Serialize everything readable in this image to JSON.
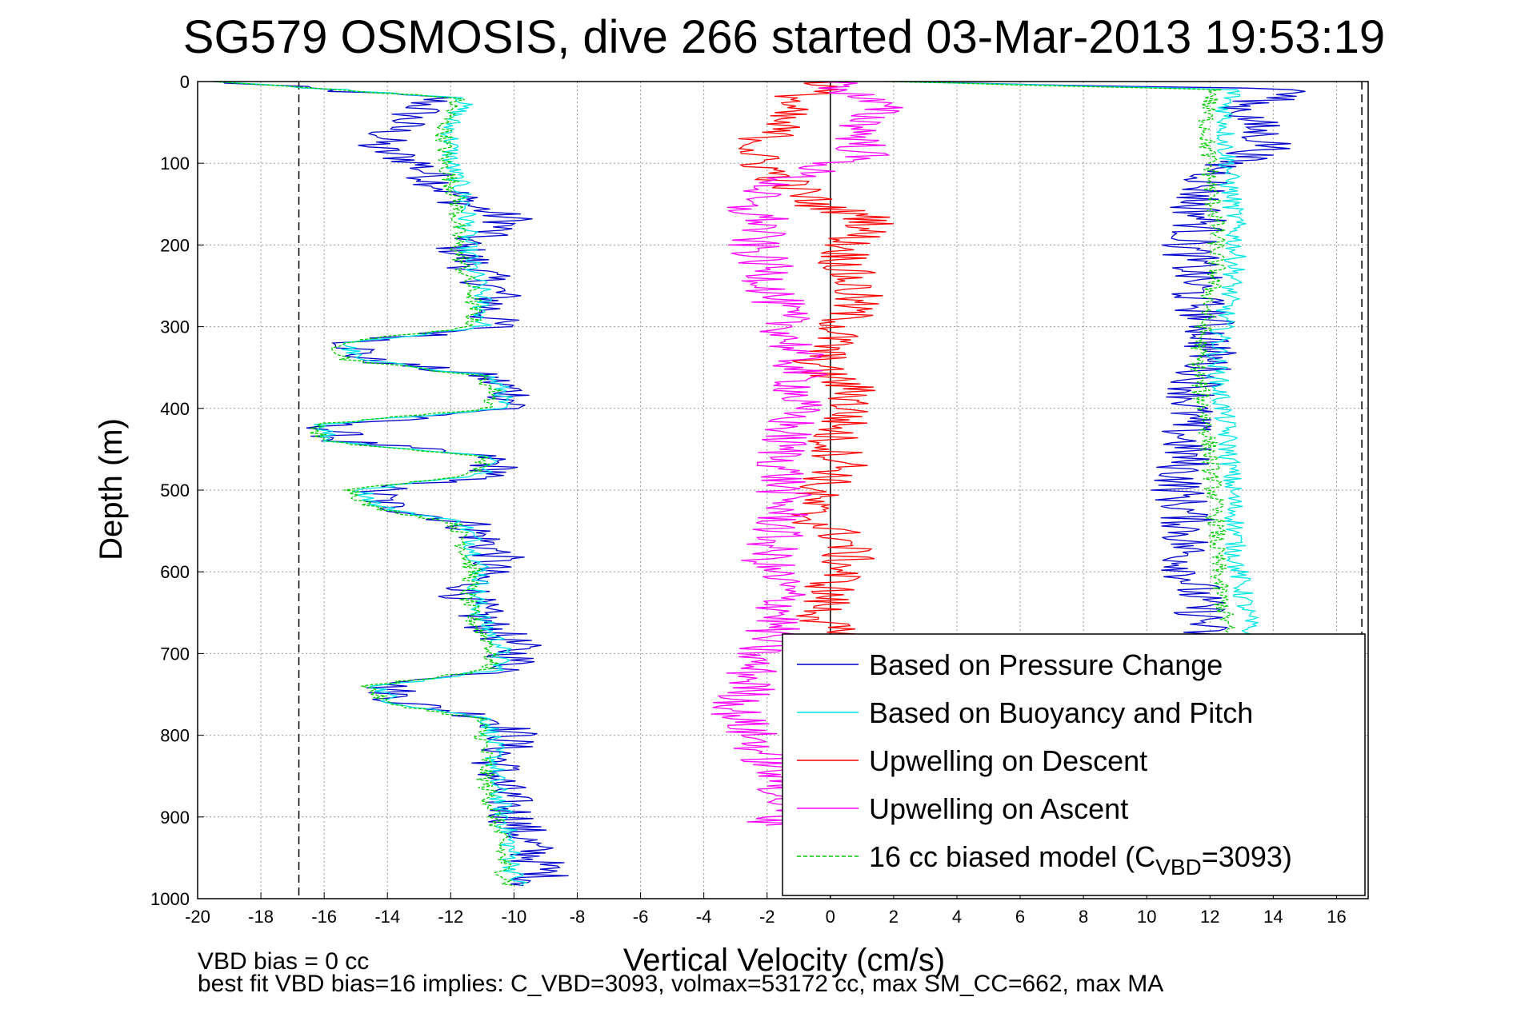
{
  "chart_data": {
    "type": "line",
    "title": "SG579 OSMOSIS, dive 266 started 03-Mar-2013 19:53:19",
    "xlabel": "Vertical Velocity (cm/s)",
    "ylabel": "Depth (m)",
    "xlim": [
      -20,
      17
    ],
    "ylim": [
      0,
      1000
    ],
    "y_reversed": true,
    "grid": true,
    "xticks": [
      "-20",
      "-18",
      "-16",
      "-14",
      "-12",
      "-10",
      "-8",
      "-6",
      "-4",
      "-2",
      "0",
      "2",
      "4",
      "6",
      "8",
      "10",
      "12",
      "14",
      "16"
    ],
    "yticks": [
      "0",
      "100",
      "200",
      "300",
      "400",
      "500",
      "600",
      "700",
      "800",
      "900",
      "1000"
    ],
    "reference_lines": {
      "vertical_dashed_x": [
        -16.8,
        16.8
      ],
      "vertical_solid_x": [
        0
      ]
    },
    "legend_position": "bottom-right",
    "legend": [
      {
        "label": "Based on Pressure Change",
        "color": "#0000cc",
        "style": "solid"
      },
      {
        "label": "Based on Buoyancy and Pitch",
        "color": "#00e6e6",
        "style": "solid"
      },
      {
        "label": "Upwelling on Descent",
        "color": "#ff0000",
        "style": "solid"
      },
      {
        "label": "Upwelling on Ascent",
        "color": "#ff00ff",
        "style": "solid"
      },
      {
        "label_prefix": "16 cc biased model (C",
        "label_subscript": "VBD",
        "label_suffix": "=3093)",
        "color": "#00cc00",
        "style": "dashed"
      }
    ],
    "series": [
      {
        "name": "Based on Pressure Change (descent)",
        "color": "#0000cc",
        "depth": [
          0,
          20,
          50,
          80,
          100,
          120,
          150,
          170,
          200,
          230,
          260,
          280,
          300,
          320,
          340,
          360,
          380,
          400,
          420,
          440,
          460,
          480,
          500,
          520,
          540,
          560,
          580,
          600,
          630,
          660,
          690,
          720,
          740,
          760,
          780,
          800,
          830,
          860,
          900,
          940,
          970,
          985
        ],
        "velocity": [
          -19.5,
          -12.5,
          -13.5,
          -14.5,
          -13.0,
          -12.5,
          -11.5,
          -10.0,
          -11.8,
          -11.2,
          -10.5,
          -10.8,
          -10.6,
          -15.0,
          -14.8,
          -11.0,
          -10.0,
          -10.0,
          -15.8,
          -15.5,
          -10.8,
          -10.5,
          -14.5,
          -14.0,
          -11.5,
          -11.0,
          -10.5,
          -11.0,
          -11.5,
          -11.0,
          -10.0,
          -10.0,
          -14.0,
          -13.5,
          -10.5,
          -10.0,
          -10.5,
          -10.5,
          -10.0,
          -9.5,
          -9.0,
          -9.5
        ]
      },
      {
        "name": "Based on Buoyancy and Pitch (descent)",
        "color": "#00e6e6",
        "depth": [
          0,
          20,
          50,
          80,
          100,
          120,
          150,
          170,
          200,
          230,
          260,
          280,
          300,
          320,
          340,
          360,
          380,
          400,
          420,
          440,
          460,
          480,
          500,
          520,
          540,
          560,
          580,
          600,
          630,
          660,
          690,
          720,
          740,
          760,
          780,
          800,
          830,
          860,
          900,
          940,
          970,
          985
        ],
        "velocity": [
          -19.5,
          -11.5,
          -12.0,
          -12.0,
          -12.0,
          -11.8,
          -11.5,
          -11.5,
          -11.5,
          -11.3,
          -11.0,
          -11.0,
          -11.0,
          -15.3,
          -15.0,
          -10.8,
          -10.3,
          -10.5,
          -16.0,
          -15.8,
          -10.5,
          -11.0,
          -14.8,
          -14.3,
          -11.6,
          -11.3,
          -11.2,
          -11.0,
          -11.2,
          -11.0,
          -10.4,
          -10.5,
          -14.3,
          -13.8,
          -10.8,
          -10.7,
          -10.6,
          -10.6,
          -10.3,
          -10.1,
          -10.0,
          -9.8
        ]
      },
      {
        "name": "Biased model (descent)",
        "color": "#00cc00",
        "depth": [
          0,
          20,
          50,
          80,
          100,
          120,
          150,
          170,
          200,
          230,
          260,
          280,
          300,
          320,
          340,
          360,
          380,
          400,
          420,
          440,
          460,
          480,
          500,
          520,
          540,
          560,
          580,
          600,
          630,
          660,
          690,
          720,
          740,
          760,
          780,
          800,
          830,
          860,
          900,
          940,
          970,
          985
        ],
        "velocity": [
          -19.5,
          -11.8,
          -12.2,
          -12.2,
          -12.2,
          -12.0,
          -11.8,
          -11.8,
          -11.8,
          -11.6,
          -11.3,
          -11.3,
          -11.3,
          -15.6,
          -15.3,
          -11.1,
          -10.6,
          -10.8,
          -16.3,
          -16.1,
          -10.8,
          -11.3,
          -15.1,
          -14.6,
          -11.9,
          -11.6,
          -11.5,
          -11.3,
          -11.5,
          -11.3,
          -10.7,
          -10.8,
          -14.6,
          -14.1,
          -11.1,
          -11.0,
          -10.9,
          -10.9,
          -10.6,
          -10.4,
          -10.3,
          -10.1
        ]
      },
      {
        "name": "Based on Pressure Change (ascent)",
        "color": "#0000cc",
        "depth": [
          985,
          940,
          900,
          860,
          820,
          780,
          740,
          700,
          660,
          620,
          580,
          540,
          500,
          460,
          420,
          380,
          340,
          300,
          260,
          230,
          200,
          170,
          150,
          120,
          100,
          80,
          60,
          30,
          10,
          0
        ],
        "velocity": [
          15.5,
          13.0,
          12.5,
          12.0,
          11.5,
          11.5,
          11.5,
          11.5,
          11.8,
          11.5,
          11.2,
          11.3,
          11.0,
          11.2,
          11.2,
          11.5,
          12.0,
          12.0,
          11.5,
          11.5,
          11.3,
          11.8,
          11.5,
          12.0,
          12.5,
          14.0,
          13.5,
          13.0,
          15.0,
          2.0
        ]
      },
      {
        "name": "Based on Buoyancy and Pitch (ascent)",
        "color": "#00e6e6",
        "depth": [
          985,
          940,
          900,
          860,
          820,
          780,
          740,
          700,
          660,
          620,
          580,
          540,
          500,
          460,
          420,
          380,
          340,
          300,
          260,
          230,
          200,
          170,
          150,
          120,
          100,
          80,
          60,
          30,
          10,
          0
        ],
        "velocity": [
          15.5,
          14.0,
          13.8,
          13.6,
          13.4,
          13.3,
          13.2,
          13.2,
          13.2,
          13.0,
          12.8,
          12.8,
          12.7,
          12.6,
          12.5,
          12.3,
          12.2,
          12.4,
          12.6,
          12.8,
          12.8,
          12.8,
          12.7,
          12.6,
          12.6,
          12.5,
          12.5,
          12.5,
          12.8,
          2.0
        ]
      },
      {
        "name": "Biased model (ascent)",
        "color": "#00cc00",
        "depth": [
          985,
          940,
          900,
          860,
          820,
          780,
          740,
          700,
          660,
          620,
          580,
          540,
          500,
          460,
          420,
          380,
          340,
          300,
          260,
          230,
          200,
          170,
          150,
          120,
          100,
          80,
          60,
          30,
          10,
          0
        ],
        "velocity": [
          15.0,
          13.3,
          13.1,
          12.9,
          12.7,
          12.6,
          12.5,
          12.5,
          12.5,
          12.3,
          12.2,
          12.2,
          12.1,
          12.0,
          11.9,
          11.7,
          11.6,
          11.8,
          12.0,
          12.2,
          12.2,
          12.2,
          12.1,
          12.0,
          12.0,
          11.9,
          11.9,
          11.9,
          12.2,
          1.8
        ]
      },
      {
        "name": "Upwelling on Descent",
        "color": "#ff0000",
        "depth": [
          0,
          30,
          60,
          90,
          120,
          150,
          170,
          200,
          230,
          260,
          290,
          320,
          350,
          380,
          410,
          440,
          470,
          500,
          530,
          560,
          590,
          620,
          650,
          680,
          710
        ],
        "velocity": [
          0,
          -1.5,
          -1.8,
          -2.5,
          -1.5,
          -0.5,
          1.5,
          0.5,
          0.5,
          0.8,
          0.5,
          0,
          -0.5,
          0.8,
          0.5,
          0,
          0.5,
          -0.5,
          -0.8,
          0.5,
          0.5,
          0,
          -0.3,
          0,
          0
        ]
      },
      {
        "name": "Upwelling on Ascent",
        "color": "#ff00ff",
        "depth": [
          0,
          30,
          60,
          90,
          120,
          150,
          170,
          200,
          230,
          260,
          290,
          320,
          350,
          380,
          410,
          440,
          470,
          500,
          530,
          560,
          590,
          620,
          650,
          680,
          710,
          740,
          770,
          800,
          830,
          860,
          890,
          910
        ],
        "velocity": [
          0,
          1.5,
          1.0,
          1.0,
          -1.5,
          -3.0,
          -2.0,
          -2.5,
          -2.0,
          -1.8,
          -1.5,
          -1.2,
          -1.0,
          -1.0,
          -1.2,
          -1.5,
          -1.5,
          -1.5,
          -1.5,
          -1.8,
          -2.0,
          -1.5,
          -1.5,
          -2.0,
          -2.5,
          -2.5,
          -3.0,
          -2.5,
          -2.0,
          -1.5,
          -1.5,
          -1.8
        ]
      }
    ],
    "footnotes": [
      "VBD bias = 0 cc",
      "best fit VBD bias=16 implies: C_VBD=3093, volmax=53172 cc, max SM_CC=662, max MA"
    ]
  }
}
